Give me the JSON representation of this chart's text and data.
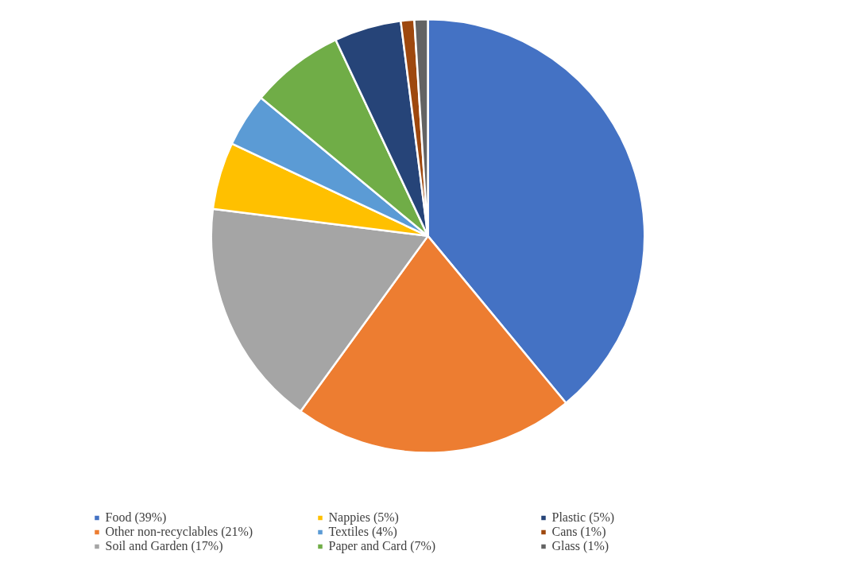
{
  "chart_data": {
    "type": "pie",
    "categories": [
      "Food (39%)",
      "Other non-recyclables (21%)",
      "Soil and Garden (17%)",
      "Nappies (5%)",
      "Textiles (4%)",
      "Paper and Card (7%)",
      "Plastic (5%)",
      "Cans (1%)",
      "Glass (1%)"
    ],
    "values": [
      39,
      21,
      17,
      5,
      4,
      7,
      5,
      1,
      1
    ],
    "colors": [
      "#4472c4",
      "#ed7d31",
      "#a5a5a5",
      "#ffc000",
      "#5b9bd5",
      "#70ad47",
      "#264478",
      "#9e480e",
      "#636363"
    ],
    "legend": "bottom"
  }
}
